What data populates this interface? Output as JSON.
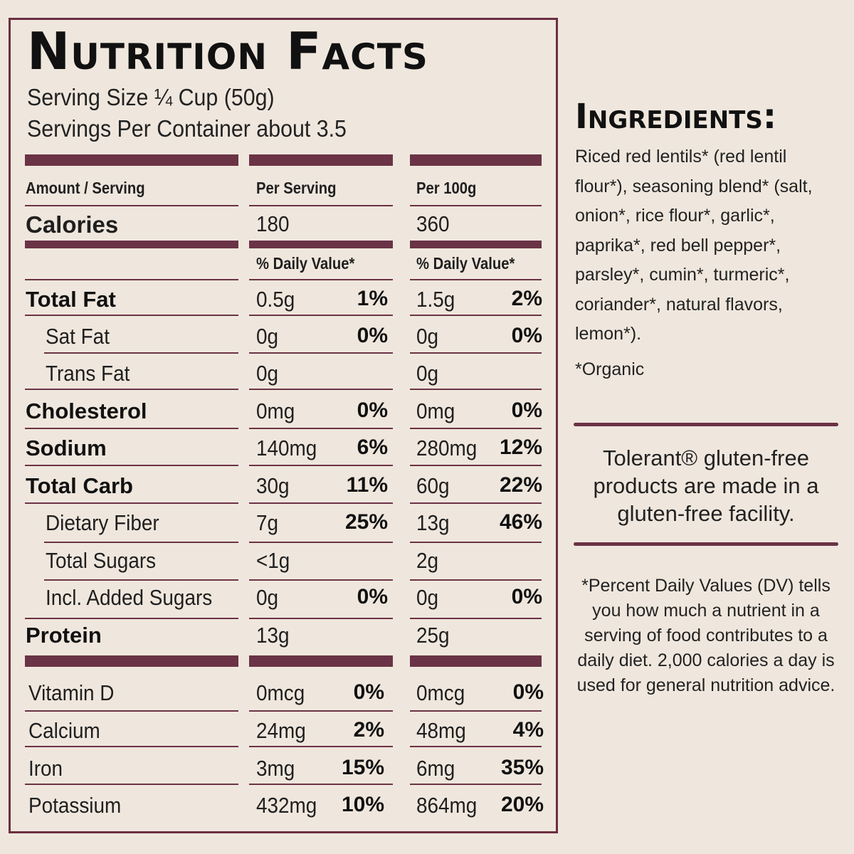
{
  "label": {
    "title": "Nutrition Facts",
    "serving_size": "Serving Size ¼ Cup (50g)",
    "servings_per_container": "Servings Per Container about 3.5",
    "col_amount": "Amount / Serving",
    "col_per_serving": "Per Serving",
    "col_per_100g": "Per 100g",
    "calories_label": "Calories",
    "calories_serving": "180",
    "calories_100g": "360",
    "dv_header": "% Daily Value*",
    "nutrients": [
      {
        "name": "Total Fat",
        "bold": true,
        "serving": "0.5g",
        "serving_dv": "1%",
        "per100": "1.5g",
        "per100_dv": "2%"
      },
      {
        "name": "Sat Fat",
        "bold": false,
        "serving": "0g",
        "serving_dv": "0%",
        "per100": "0g",
        "per100_dv": "0%"
      },
      {
        "name": "Trans Fat",
        "bold": false,
        "serving": "0g",
        "serving_dv": "",
        "per100": "0g",
        "per100_dv": ""
      },
      {
        "name": "Cholesterol",
        "bold": true,
        "serving": "0mg",
        "serving_dv": "0%",
        "per100": "0mg",
        "per100_dv": "0%"
      },
      {
        "name": "Sodium",
        "bold": true,
        "serving": "140mg",
        "serving_dv": "6%",
        "per100": "280mg",
        "per100_dv": "12%"
      },
      {
        "name": "Total Carb",
        "bold": true,
        "serving": "30g",
        "serving_dv": "11%",
        "per100": "60g",
        "per100_dv": "22%"
      },
      {
        "name": "Dietary Fiber",
        "bold": false,
        "serving": "7g",
        "serving_dv": "25%",
        "per100": "13g",
        "per100_dv": "46%"
      },
      {
        "name": "Total Sugars",
        "bold": false,
        "serving": "<1g",
        "serving_dv": "",
        "per100": "2g",
        "per100_dv": ""
      },
      {
        "name": "Incl. Added Sugars",
        "bold": false,
        "serving": "0g",
        "serving_dv": "0%",
        "per100": "0g",
        "per100_dv": "0%"
      },
      {
        "name": "Protein",
        "bold": true,
        "serving": "13g",
        "serving_dv": "",
        "per100": "25g",
        "per100_dv": ""
      }
    ],
    "vitamins": [
      {
        "name": "Vitamin D",
        "serving": "0mcg",
        "serving_dv": "0%",
        "per100": "0mcg",
        "per100_dv": "0%"
      },
      {
        "name": "Calcium",
        "serving": "24mg",
        "serving_dv": "2%",
        "per100": "48mg",
        "per100_dv": "4%"
      },
      {
        "name": "Iron",
        "serving": "3mg",
        "serving_dv": "15%",
        "per100": "6mg",
        "per100_dv": "35%"
      },
      {
        "name": "Potassium",
        "serving": "432mg",
        "serving_dv": "10%",
        "per100": "864mg",
        "per100_dv": "20%"
      }
    ]
  },
  "ingredients": {
    "title": "Ingredients:",
    "text": "Riced red lentils* (red lentil flour*), seasoning blend* (salt, onion*, rice flour*, garlic*, paprika*, red bell pepper*, parsley*, cumin*, turmeric*, coriander*, natural flavors, lemon*).",
    "organic_note": "*Organic"
  },
  "facility_note": "Tolerant® gluten-free products are made in a gluten-free facility.",
  "dv_note": "*Percent Daily Values (DV) tells you how much a nutrient in a serving of food contributes to a daily diet. 2,000 calories a day is used for general nutrition advice.",
  "colors": {
    "accent": "#6b3346",
    "background": "#efe7dd",
    "text": "#1a1a1a"
  }
}
